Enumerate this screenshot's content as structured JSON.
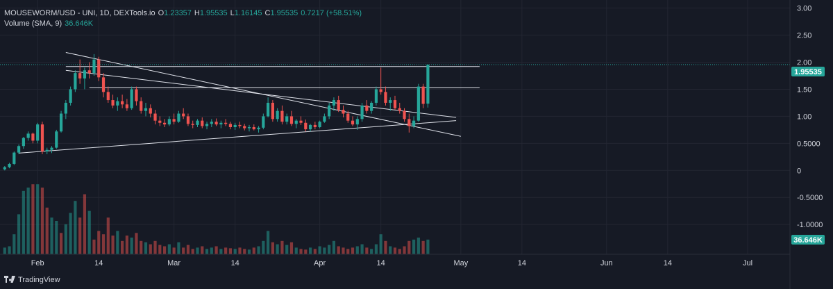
{
  "legend": {
    "symbol": "MOUSEWORM/USD - UNI, 1D, DEXTools.io",
    "o_label": "O",
    "o_value": "1.23357",
    "h_label": "H",
    "h_value": "1.95535",
    "l_label": "L",
    "l_value": "1.16145",
    "c_label": "C",
    "c_value": "1.95535",
    "change": "0.7217 (+58.51%)",
    "volume_label": "Volume (SMA, 9)",
    "volume_value": "36.646K"
  },
  "brand": {
    "name": "TradingView"
  },
  "colors": {
    "up": "#26a69a",
    "down": "#ef5350",
    "background": "#161a25",
    "grid": "#232632",
    "text": "#d1d4dc",
    "last_price_bg": "#26a69a"
  },
  "chart_data": {
    "type": "candlestick",
    "price_axis": {
      "ticks": [
        "3.00",
        "2.50",
        "2.00",
        "1.50",
        "1.00",
        "0.5000",
        "0",
        "-0.5000",
        "-1.0000"
      ],
      "values": [
        3.0,
        2.5,
        2.0,
        1.5,
        1.0,
        0.5,
        0,
        -0.5,
        -1.0
      ],
      "ylim": [
        -1.55,
        3.15
      ]
    },
    "last_price_label": "1.95535",
    "last_price": 1.95535,
    "volume_label": "36.646K",
    "time_axis": {
      "ticks": [
        {
          "label": "Feb",
          "day": 0
        },
        {
          "label": "14",
          "day": 13
        },
        {
          "label": "Mar",
          "day": 29
        },
        {
          "label": "14",
          "day": 42
        },
        {
          "label": "Apr",
          "day": 60
        },
        {
          "label": "14",
          "day": 73
        },
        {
          "label": "May",
          "day": 90
        },
        {
          "label": "14",
          "day": 103
        },
        {
          "label": "Jun",
          "day": 121
        },
        {
          "label": "14",
          "day": 134
        },
        {
          "label": "Jul",
          "day": 151
        }
      ],
      "xlim": [
        -8,
        160
      ],
      "first_day": -7
    },
    "candles": [
      [
        0.02,
        0.08,
        0.0,
        0.06
      ],
      [
        0.06,
        0.14,
        0.04,
        0.12
      ],
      [
        0.12,
        0.35,
        0.1,
        0.33
      ],
      [
        0.33,
        0.48,
        0.3,
        0.45
      ],
      [
        0.45,
        0.62,
        0.4,
        0.6
      ],
      [
        0.6,
        0.72,
        0.55,
        0.68
      ],
      [
        0.68,
        0.7,
        0.5,
        0.55
      ],
      [
        0.55,
        0.88,
        0.5,
        0.85
      ],
      [
        0.85,
        0.9,
        0.3,
        0.35
      ],
      [
        0.35,
        0.42,
        0.3,
        0.38
      ],
      [
        0.38,
        0.45,
        0.32,
        0.42
      ],
      [
        0.42,
        0.75,
        0.4,
        0.72
      ],
      [
        0.72,
        1.1,
        0.7,
        1.05
      ],
      [
        1.05,
        1.3,
        0.95,
        1.25
      ],
      [
        1.25,
        1.55,
        1.2,
        1.5
      ],
      [
        1.5,
        1.85,
        1.45,
        1.8
      ],
      [
        1.8,
        2.05,
        1.6,
        1.7
      ],
      [
        1.7,
        1.9,
        1.5,
        1.85
      ],
      [
        1.85,
        2.0,
        1.7,
        1.8
      ],
      [
        1.8,
        2.15,
        1.75,
        2.05
      ],
      [
        2.05,
        2.1,
        1.65,
        1.72
      ],
      [
        1.72,
        1.8,
        1.35,
        1.45
      ],
      [
        1.45,
        1.55,
        1.25,
        1.3
      ],
      [
        1.3,
        1.4,
        1.15,
        1.2
      ],
      [
        1.2,
        1.35,
        1.1,
        1.28
      ],
      [
        1.28,
        1.4,
        1.15,
        1.22
      ],
      [
        1.22,
        1.32,
        1.1,
        1.15
      ],
      [
        1.15,
        1.55,
        1.12,
        1.5
      ],
      [
        1.5,
        1.55,
        1.2,
        1.28
      ],
      [
        1.28,
        1.35,
        1.05,
        1.1
      ],
      [
        1.1,
        1.25,
        1.0,
        1.15
      ],
      [
        1.15,
        1.22,
        0.98,
        1.05
      ],
      [
        1.05,
        1.12,
        0.85,
        0.92
      ],
      [
        0.92,
        1.0,
        0.82,
        0.88
      ],
      [
        0.88,
        0.95,
        0.8,
        0.85
      ],
      [
        0.85,
        1.0,
        0.82,
        0.95
      ],
      [
        0.95,
        1.05,
        0.85,
        0.9
      ],
      [
        0.9,
        1.1,
        0.88,
        1.05
      ],
      [
        1.05,
        1.15,
        0.95,
        1.0
      ],
      [
        1.0,
        1.05,
        0.82,
        0.86
      ],
      [
        0.86,
        0.92,
        0.78,
        0.84
      ],
      [
        0.84,
        0.95,
        0.8,
        0.92
      ],
      [
        0.92,
        0.98,
        0.78,
        0.82
      ],
      [
        0.82,
        0.9,
        0.76,
        0.86
      ],
      [
        0.86,
        0.95,
        0.8,
        0.9
      ],
      [
        0.9,
        0.96,
        0.82,
        0.85
      ],
      [
        0.85,
        0.92,
        0.78,
        0.88
      ],
      [
        0.88,
        0.95,
        0.82,
        0.86
      ],
      [
        0.86,
        0.9,
        0.76,
        0.8
      ],
      [
        0.8,
        0.88,
        0.75,
        0.84
      ],
      [
        0.84,
        0.9,
        0.78,
        0.82
      ],
      [
        0.82,
        0.86,
        0.74,
        0.78
      ],
      [
        0.78,
        0.84,
        0.72,
        0.8
      ],
      [
        0.8,
        0.85,
        0.74,
        0.76
      ],
      [
        0.76,
        0.82,
        0.7,
        0.79
      ],
      [
        0.79,
        1.05,
        0.76,
        1.0
      ],
      [
        1.0,
        1.35,
        0.98,
        1.25
      ],
      [
        1.25,
        1.3,
        0.9,
        0.95
      ],
      [
        0.95,
        1.15,
        0.9,
        1.1
      ],
      [
        1.1,
        1.2,
        0.85,
        0.9
      ],
      [
        0.9,
        1.05,
        0.85,
        1.0
      ],
      [
        1.0,
        1.1,
        0.82,
        0.86
      ],
      [
        0.86,
        0.95,
        0.78,
        0.92
      ],
      [
        0.92,
        1.0,
        0.84,
        0.88
      ],
      [
        0.88,
        0.94,
        0.72,
        0.76
      ],
      [
        0.76,
        0.86,
        0.72,
        0.84
      ],
      [
        0.84,
        0.9,
        0.76,
        0.8
      ],
      [
        0.8,
        0.92,
        0.78,
        0.9
      ],
      [
        0.9,
        1.05,
        0.88,
        1.0
      ],
      [
        1.0,
        1.25,
        0.95,
        1.2
      ],
      [
        1.2,
        1.35,
        1.1,
        1.3
      ],
      [
        1.3,
        1.38,
        1.08,
        1.12
      ],
      [
        1.12,
        1.2,
        0.98,
        1.05
      ],
      [
        1.05,
        1.1,
        0.88,
        0.92
      ],
      [
        0.92,
        1.0,
        0.82,
        0.85
      ],
      [
        0.85,
        1.0,
        0.75,
        0.95
      ],
      [
        0.95,
        1.25,
        0.9,
        1.2
      ],
      [
        1.2,
        1.3,
        1.05,
        1.1
      ],
      [
        1.1,
        1.28,
        1.05,
        1.25
      ],
      [
        1.25,
        1.55,
        1.2,
        1.5
      ],
      [
        1.5,
        1.9,
        1.4,
        1.45
      ],
      [
        1.45,
        1.55,
        1.2,
        1.25
      ],
      [
        1.25,
        1.35,
        1.1,
        1.3
      ],
      [
        1.3,
        1.38,
        1.12,
        1.15
      ],
      [
        1.15,
        1.25,
        1.05,
        1.1
      ],
      [
        1.1,
        1.15,
        0.9,
        0.95
      ],
      [
        0.95,
        1.05,
        0.7,
        0.82
      ],
      [
        0.82,
        1.0,
        0.78,
        0.92
      ],
      [
        0.92,
        1.6,
        0.9,
        1.55
      ],
      [
        1.55,
        1.6,
        1.15,
        1.23
      ],
      [
        1.23357,
        1.95535,
        1.16145,
        1.95535
      ]
    ],
    "volumes": [
      [
        0.1,
        1
      ],
      [
        0.12,
        1
      ],
      [
        0.3,
        1
      ],
      [
        0.6,
        1
      ],
      [
        0.95,
        1
      ],
      [
        1.0,
        1
      ],
      [
        1.05,
        0
      ],
      [
        1.05,
        1
      ],
      [
        1.0,
        0
      ],
      [
        0.7,
        0
      ],
      [
        0.55,
        1
      ],
      [
        0.5,
        1
      ],
      [
        0.32,
        0
      ],
      [
        0.45,
        1
      ],
      [
        0.62,
        1
      ],
      [
        0.8,
        1
      ],
      [
        0.55,
        0
      ],
      [
        0.9,
        0
      ],
      [
        0.65,
        1
      ],
      [
        0.22,
        0
      ],
      [
        0.35,
        0
      ],
      [
        0.3,
        0
      ],
      [
        0.55,
        0
      ],
      [
        0.28,
        0
      ],
      [
        0.35,
        1
      ],
      [
        0.2,
        0
      ],
      [
        0.28,
        0
      ],
      [
        0.25,
        1
      ],
      [
        0.32,
        0
      ],
      [
        0.2,
        0
      ],
      [
        0.18,
        1
      ],
      [
        0.15,
        0
      ],
      [
        0.2,
        0
      ],
      [
        0.14,
        0
      ],
      [
        0.12,
        0
      ],
      [
        0.15,
        1
      ],
      [
        0.1,
        0
      ],
      [
        0.18,
        1
      ],
      [
        0.1,
        0
      ],
      [
        0.14,
        0
      ],
      [
        0.08,
        0
      ],
      [
        0.1,
        1
      ],
      [
        0.12,
        0
      ],
      [
        0.08,
        1
      ],
      [
        0.1,
        1
      ],
      [
        0.12,
        0
      ],
      [
        0.08,
        1
      ],
      [
        0.1,
        0
      ],
      [
        0.09,
        0
      ],
      [
        0.08,
        1
      ],
      [
        0.1,
        0
      ],
      [
        0.08,
        0
      ],
      [
        0.07,
        1
      ],
      [
        0.1,
        0
      ],
      [
        0.12,
        1
      ],
      [
        0.2,
        1
      ],
      [
        0.35,
        1
      ],
      [
        0.18,
        0
      ],
      [
        0.15,
        1
      ],
      [
        0.2,
        0
      ],
      [
        0.14,
        1
      ],
      [
        0.18,
        0
      ],
      [
        0.1,
        1
      ],
      [
        0.08,
        0
      ],
      [
        0.07,
        0
      ],
      [
        0.1,
        1
      ],
      [
        0.08,
        0
      ],
      [
        0.12,
        1
      ],
      [
        0.1,
        1
      ],
      [
        0.14,
        1
      ],
      [
        0.2,
        1
      ],
      [
        0.12,
        0
      ],
      [
        0.1,
        0
      ],
      [
        0.08,
        0
      ],
      [
        0.1,
        0
      ],
      [
        0.12,
        1
      ],
      [
        0.15,
        1
      ],
      [
        0.1,
        0
      ],
      [
        0.08,
        1
      ],
      [
        0.15,
        1
      ],
      [
        0.3,
        1
      ],
      [
        0.2,
        0
      ],
      [
        0.12,
        1
      ],
      [
        0.1,
        0
      ],
      [
        0.08,
        0
      ],
      [
        0.12,
        0
      ],
      [
        0.2,
        0
      ],
      [
        0.22,
        1
      ],
      [
        0.25,
        1
      ],
      [
        0.2,
        0
      ],
      [
        0.22,
        1
      ]
    ],
    "trendlines": [
      {
        "name": "upper-trendline",
        "from": [
          6,
          2.18
        ],
        "to": [
          90,
          0.63
        ]
      },
      {
        "name": "inner-trendline",
        "from": [
          6,
          1.85
        ],
        "to": [
          89,
          0.98
        ]
      },
      {
        "name": "support-trendline",
        "from": [
          -4,
          0.32
        ],
        "to": [
          89,
          0.92
        ]
      },
      {
        "name": "resistance-line-upper",
        "from": [
          6,
          1.92
        ],
        "to": [
          94,
          1.92
        ]
      },
      {
        "name": "resistance-line-lower",
        "from": [
          11,
          1.53
        ],
        "to": [
          94,
          1.53
        ]
      }
    ]
  }
}
